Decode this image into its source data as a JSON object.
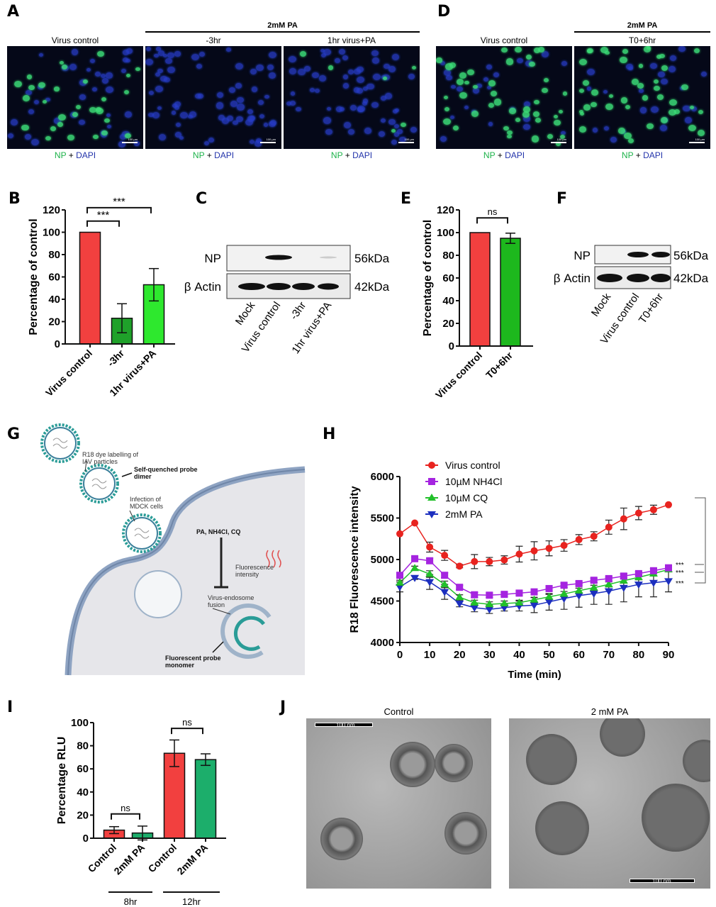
{
  "panels": {
    "a": "A",
    "b": "B",
    "c": "C",
    "d": "D",
    "e": "E",
    "f": "F",
    "g": "G",
    "h": "H",
    "i": "I",
    "j": "J"
  },
  "panel_a": {
    "group_label": "2mM PA",
    "images": [
      "Virus control",
      "-3hr",
      "1hr virus+PA"
    ],
    "caption_np": "NP",
    "caption_plus": " + ",
    "caption_dapi": "DAPI",
    "scale_bar": "100 µm"
  },
  "panel_d": {
    "group_label": "2mM PA",
    "images": [
      "Virus control",
      "T0+6hr"
    ],
    "caption_np": "NP",
    "caption_plus": " + ",
    "caption_dapi": "DAPI",
    "scale_bar": "100 µm"
  },
  "panel_c": {
    "rows": [
      "NP",
      "β Actin"
    ],
    "sizes": [
      "56kDa",
      "42kDa"
    ],
    "lanes": [
      "Mock",
      "Virus control",
      "-3hr",
      "1hr virus+PA"
    ]
  },
  "panel_f": {
    "rows": [
      "NP",
      "β Actin"
    ],
    "sizes": [
      "56kDa",
      "42kDa"
    ],
    "lanes": [
      "Mock",
      "Virus control",
      "T0+6hr"
    ]
  },
  "panel_g": {
    "labels": {
      "r18_1": "R18 dye labelling of",
      "r18_2": "IAV particles",
      "dimer_1": "Self-quenched probe",
      "dimer_2": "dimer",
      "infection_1": "Infection of",
      "infection_2": "MDCK cells",
      "inhibitors": "PA, NH4Cl, CQ",
      "fluor_1": "Fluorescence",
      "fluor_2": "intensity",
      "fusion_1": "Virus-endosome",
      "fusion_2": "fusion",
      "monomer_1": "Fluorescent probe",
      "monomer_2": "monomer"
    }
  },
  "panel_j": {
    "images": [
      "Control",
      "2 mM PA"
    ],
    "scale_bar": "100 nm"
  },
  "chart_data": [
    {
      "panel": "B",
      "type": "bar",
      "categories": [
        "Virus control",
        "-3hr",
        "1hr virus+PA"
      ],
      "values": [
        100,
        23,
        53
      ],
      "errors": [
        0,
        13,
        14.5
      ],
      "colors": [
        "#f2403f",
        "#1fa12a",
        "#2ee82e"
      ],
      "ylabel": "Percentage of control",
      "ylim": [
        0,
        120
      ],
      "yticks": [
        "0",
        "20",
        "40",
        "60",
        "80",
        "100",
        "120"
      ],
      "significance": [
        {
          "from": 0,
          "to": 1,
          "label": "***",
          "y": 110
        },
        {
          "from": 0,
          "to": 2,
          "label": "***",
          "y": 122
        }
      ]
    },
    {
      "panel": "E",
      "type": "bar",
      "categories": [
        "Virus control",
        "T0+6hr"
      ],
      "values": [
        100,
        95
      ],
      "errors": [
        0,
        4.5
      ],
      "colors": [
        "#f2403f",
        "#1db81d"
      ],
      "ylabel": "Percentage of control",
      "ylim": [
        0,
        120
      ],
      "yticks": [
        "0",
        "20",
        "40",
        "60",
        "80",
        "100",
        "120"
      ],
      "significance": [
        {
          "from": 0,
          "to": 1,
          "label": "ns",
          "y": 113
        }
      ]
    },
    {
      "panel": "H",
      "type": "line",
      "xlabel": "Time (min)",
      "ylabel": "R18 Fluorescence intensity",
      "xlim": [
        0,
        90
      ],
      "ylim": [
        4000,
        6000
      ],
      "xticks": [
        "0",
        "10",
        "20",
        "30",
        "40",
        "50",
        "60",
        "70",
        "80",
        "90"
      ],
      "yticks": [
        "4000",
        "4500",
        "5000",
        "5500",
        "6000"
      ],
      "x": [
        0,
        5,
        10,
        15,
        20,
        25,
        30,
        35,
        40,
        45,
        50,
        55,
        60,
        65,
        70,
        75,
        80,
        85,
        90
      ],
      "legend": "top-left",
      "series": [
        {
          "name": "Virus control",
          "color": "#e8231f",
          "marker": "circle",
          "values": [
            5310,
            5440,
            5150,
            5050,
            4920,
            4975,
            4975,
            4995,
            5065,
            5105,
            5135,
            5170,
            5240,
            5280,
            5390,
            5490,
            5560,
            5600,
            5660
          ],
          "errors": [
            0,
            0,
            60,
            60,
            20,
            85,
            50,
            50,
            95,
            110,
            90,
            70,
            60,
            55,
            85,
            130,
            80,
            55,
            0
          ]
        },
        {
          "name": "10µM NH4Cl",
          "color": "#a524e0",
          "marker": "square",
          "values": [
            4810,
            5010,
            4985,
            4810,
            4665,
            4575,
            4570,
            4580,
            4595,
            4610,
            4650,
            4690,
            4710,
            4750,
            4770,
            4800,
            4830,
            4865,
            4900
          ],
          "errors": [
            30,
            20,
            30,
            30,
            25,
            30,
            25,
            25,
            25,
            25,
            25,
            25,
            25,
            25,
            25,
            25,
            25,
            25,
            30
          ]
        },
        {
          "name": "10µM CQ",
          "color": "#22c02a",
          "marker": "triangle-up",
          "values": [
            4720,
            4895,
            4825,
            4700,
            4545,
            4480,
            4460,
            4470,
            4480,
            4515,
            4550,
            4585,
            4625,
            4660,
            4700,
            4745,
            4785,
            4830,
            4880
          ],
          "errors": [
            30,
            25,
            40,
            40,
            30,
            30,
            30,
            30,
            30,
            30,
            30,
            30,
            30,
            30,
            30,
            30,
            30,
            30,
            30
          ]
        },
        {
          "name": "2mM PA",
          "color": "#1c2fbf",
          "marker": "triangle-down",
          "values": [
            4670,
            4780,
            4730,
            4610,
            4470,
            4420,
            4400,
            4420,
            4440,
            4450,
            4490,
            4530,
            4565,
            4590,
            4620,
            4660,
            4700,
            4720,
            4740
          ],
          "errors": [
            60,
            20,
            90,
            90,
            40,
            50,
            50,
            40,
            60,
            90,
            100,
            130,
            140,
            130,
            160,
            170,
            150,
            170,
            130
          ]
        }
      ],
      "significance": [
        "***",
        "***",
        "***"
      ]
    },
    {
      "panel": "I",
      "type": "bar",
      "categories": [
        "Control",
        "2mM PA",
        "Control",
        "2mM PA"
      ],
      "groups": [
        "8hr",
        "12hr"
      ],
      "values": [
        7,
        4.5,
        73.5,
        68
      ],
      "errors": [
        3,
        6,
        11.5,
        5
      ],
      "colors": [
        "#f2403f",
        "#1cae6b",
        "#f2403f",
        "#1cae6b"
      ],
      "ylabel": "Percentage RLU",
      "ylim": [
        0,
        100
      ],
      "yticks": [
        "0",
        "20",
        "40",
        "60",
        "80",
        "100"
      ],
      "significance": [
        {
          "from": 0,
          "to": 1,
          "label": "ns",
          "y": 21
        },
        {
          "from": 2,
          "to": 3,
          "label": "ns",
          "y": 95
        }
      ]
    }
  ]
}
